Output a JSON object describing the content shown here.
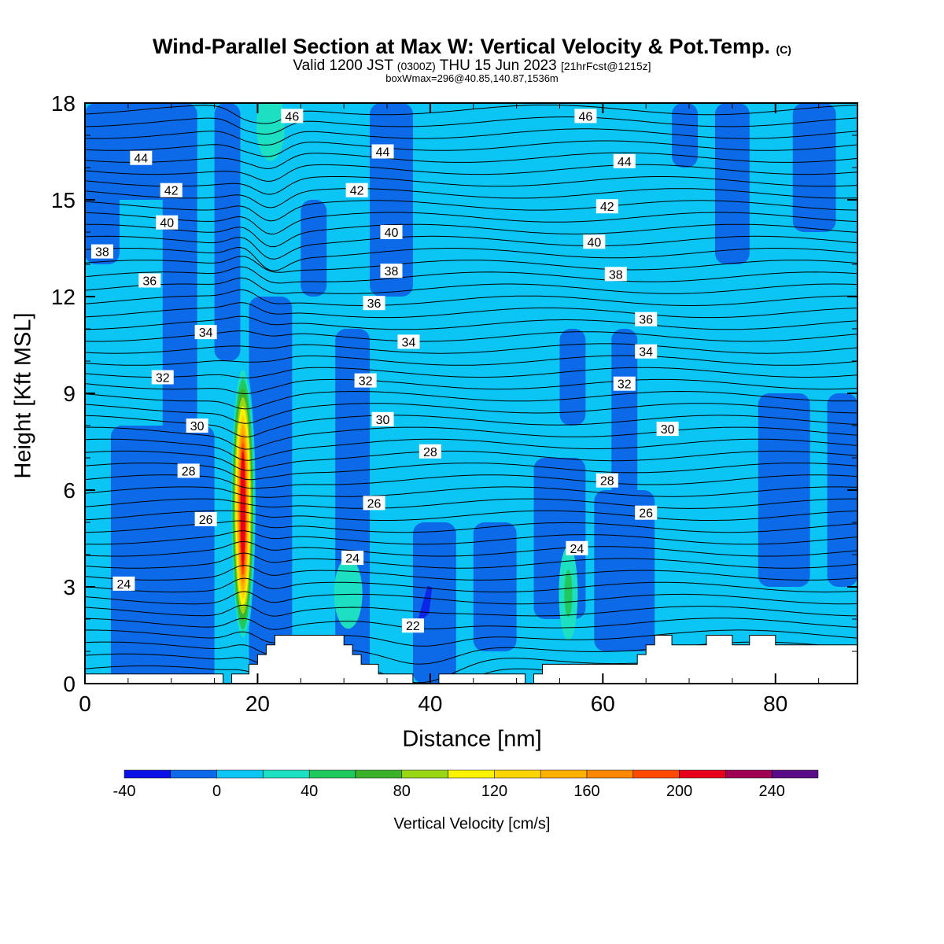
{
  "title": {
    "main": "Wind-Parallel Section at Max W: Vertical Velocity & Pot.Temp.",
    "copyright": "(C)",
    "valid_prefix": "Valid 1200 JST",
    "valid_utc": "(0300Z)",
    "valid_date": "THU 15 Jun 2023",
    "forecast": "[21hrFcst@1215z]",
    "boxmax": "boxWmax=296@40.85,140.87,1536m"
  },
  "chart_data": {
    "type": "heatmap",
    "xlabel": "Distance [nm]",
    "ylabel": "Height [Kft MSL]",
    "xlim": [
      0,
      89.5
    ],
    "ylim": [
      0,
      18
    ],
    "x_ticks": [
      0,
      20,
      40,
      60,
      80
    ],
    "y_ticks": [
      0,
      3,
      6,
      9,
      12,
      15,
      18
    ],
    "background_value_range": "0 to 20",
    "field_colors": {
      "ltm20": "#0a26e6",
      "m20_0": "#0c6ae8",
      "b0_20": "#0bc6f4",
      "b20_40": "#1de0c2",
      "b40_60": "#20c85e",
      "b60_80": "#3cb12a",
      "b80_100": "#99d614",
      "b100_120": "#fff200",
      "b120_140": "#fdd600",
      "b140_160": "#ffb000",
      "b160_180": "#ff8800",
      "b180_200": "#ff4a00",
      "b200_220": "#e8001a"
    },
    "downdraft_columns_x_range": [
      [
        0,
        4,
        13,
        18
      ],
      [
        3,
        15,
        0,
        8
      ],
      [
        9,
        13,
        3,
        18
      ],
      [
        15,
        18,
        10,
        18
      ],
      [
        19,
        24,
        0,
        12
      ],
      [
        25,
        28,
        12,
        15
      ],
      [
        29,
        33,
        0,
        11
      ],
      [
        33,
        38,
        12,
        18
      ],
      [
        38,
        43,
        0,
        5
      ],
      [
        45,
        50,
        1,
        5
      ],
      [
        52,
        58,
        2,
        7
      ],
      [
        55,
        58,
        8,
        11
      ],
      [
        59,
        66,
        1,
        6
      ],
      [
        61,
        64,
        5,
        11
      ],
      [
        68,
        71,
        16,
        18
      ],
      [
        73,
        77,
        13,
        18
      ],
      [
        78,
        84,
        3,
        9
      ],
      [
        86,
        89.5,
        3,
        9
      ],
      [
        82,
        87,
        14,
        18
      ],
      [
        0,
        13,
        15,
        18
      ]
    ],
    "updraft_cores": [
      {
        "x": 18.3,
        "y": 5.5,
        "max_band": "b200_220"
      },
      {
        "x": 21.5,
        "y": 17.3,
        "max_band": "b20_40"
      },
      {
        "x": 30.5,
        "y": 2.8,
        "max_band": "b20_40"
      },
      {
        "x": 56.0,
        "y": 2.8,
        "max_band": "b40_60"
      }
    ],
    "strong_downdraft": {
      "x": 39.5,
      "y": 2.3
    },
    "terrain_top_kft": [
      [
        0,
        0.3
      ],
      [
        16,
        0.3
      ],
      [
        16,
        0.0
      ],
      [
        17,
        0.0
      ],
      [
        17,
        0.3
      ],
      [
        19,
        0.3
      ],
      [
        19,
        0.6
      ],
      [
        20,
        0.6
      ],
      [
        20,
        0.9
      ],
      [
        21,
        0.9
      ],
      [
        21,
        1.2
      ],
      [
        22,
        1.2
      ],
      [
        22,
        1.5
      ],
      [
        30,
        1.5
      ],
      [
        30,
        1.2
      ],
      [
        31,
        1.2
      ],
      [
        31,
        0.9
      ],
      [
        32,
        0.9
      ],
      [
        32,
        0.6
      ],
      [
        34,
        0.6
      ],
      [
        34,
        0.3
      ],
      [
        38,
        0.3
      ],
      [
        38,
        0.0
      ],
      [
        41,
        0.0
      ],
      [
        41,
        0.3
      ],
      [
        51,
        0.3
      ],
      [
        51,
        0.0
      ],
      [
        52,
        0.0
      ],
      [
        52,
        0.3
      ],
      [
        53,
        0.3
      ],
      [
        53,
        0.6
      ],
      [
        64,
        0.6
      ],
      [
        64,
        0.9
      ],
      [
        65,
        0.9
      ],
      [
        65,
        1.2
      ],
      [
        66,
        1.2
      ],
      [
        66,
        1.5
      ],
      [
        68,
        1.5
      ],
      [
        68,
        1.2
      ],
      [
        72,
        1.2
      ],
      [
        72,
        1.5
      ],
      [
        75,
        1.5
      ],
      [
        75,
        1.2
      ],
      [
        77,
        1.2
      ],
      [
        77,
        1.5
      ],
      [
        80,
        1.5
      ],
      [
        80,
        1.2
      ],
      [
        89.5,
        1.2
      ]
    ],
    "theta_contours": [
      {
        "value": 22,
        "label": "22",
        "label_x": 38.0,
        "label_y": 1.8
      },
      {
        "value": 24,
        "label": "24",
        "label_x": 4.5,
        "label_y": 3.1
      },
      {
        "value": 26,
        "label": "26",
        "label_x": 14.0,
        "label_y": 5.1
      },
      {
        "value": 28,
        "label": "28",
        "label_x": 12.0,
        "label_y": 6.6
      },
      {
        "value": 30,
        "label": "30",
        "label_x": 13.0,
        "label_y": 8.0
      },
      {
        "value": 32,
        "label": "32",
        "label_x": 9.0,
        "label_y": 9.5
      },
      {
        "value": 34,
        "label": "34",
        "label_x": 14.0,
        "label_y": 10.9
      },
      {
        "value": 36,
        "label": "36",
        "label_x": 7.5,
        "label_y": 12.5
      },
      {
        "value": 38,
        "label": "38",
        "label_x": 2.0,
        "label_y": 13.4
      },
      {
        "value": 40,
        "label": "40",
        "label_x": 9.5,
        "label_y": 14.3
      },
      {
        "value": 42,
        "label": "42",
        "label_x": 10.0,
        "label_y": 15.3
      },
      {
        "value": 44,
        "label": "44",
        "label_x": 6.5,
        "label_y": 16.3
      },
      {
        "value": 46,
        "label": "46",
        "label_x": 24.0,
        "label_y": 17.6
      }
    ],
    "theta_extra_labels": [
      {
        "label": "24",
        "x": 31.0,
        "y": 3.9
      },
      {
        "label": "26",
        "x": 33.5,
        "y": 5.6
      },
      {
        "label": "28",
        "x": 40.0,
        "y": 7.2
      },
      {
        "label": "30",
        "x": 34.5,
        "y": 8.2
      },
      {
        "label": "32",
        "x": 32.5,
        "y": 9.4
      },
      {
        "label": "34",
        "x": 37.5,
        "y": 10.6
      },
      {
        "label": "36",
        "x": 33.5,
        "y": 11.8
      },
      {
        "label": "38",
        "x": 35.5,
        "y": 12.8
      },
      {
        "label": "40",
        "x": 35.5,
        "y": 14.0
      },
      {
        "label": "42",
        "x": 31.5,
        "y": 15.3
      },
      {
        "label": "44",
        "x": 34.5,
        "y": 16.5
      },
      {
        "label": "24",
        "x": 57.0,
        "y": 4.2
      },
      {
        "label": "26",
        "x": 65.0,
        "y": 5.3
      },
      {
        "label": "28",
        "x": 60.5,
        "y": 6.3
      },
      {
        "label": "30",
        "x": 67.5,
        "y": 7.9
      },
      {
        "label": "32",
        "x": 62.5,
        "y": 9.3
      },
      {
        "label": "34",
        "x": 65.0,
        "y": 10.3
      },
      {
        "label": "36",
        "x": 65.0,
        "y": 11.3
      },
      {
        "label": "38",
        "x": 61.5,
        "y": 12.7
      },
      {
        "label": "40",
        "x": 59.0,
        "y": 13.7
      },
      {
        "label": "42",
        "x": 60.5,
        "y": 14.8
      },
      {
        "label": "44",
        "x": 62.5,
        "y": 16.2
      },
      {
        "label": "46",
        "x": 58.0,
        "y": 17.6
      }
    ],
    "colorbar": {
      "label": "Vertical Velocity [cm/s]",
      "tick_labels": [
        "-40",
        "0",
        "40",
        "80",
        "120",
        "160",
        "200",
        "240"
      ],
      "boundaries": [
        -40,
        -20,
        0,
        20,
        40,
        60,
        80,
        100,
        120,
        140,
        160,
        180,
        200,
        220,
        240,
        260
      ],
      "colors": [
        "#0a10e6",
        "#0c6ae8",
        "#0bc6f4",
        "#1de0c2",
        "#20c85e",
        "#3cb12a",
        "#99d614",
        "#fff200",
        "#fdd600",
        "#ffb000",
        "#ff8800",
        "#ff4a00",
        "#e8001a",
        "#a00054",
        "#5a0c88"
      ]
    }
  }
}
